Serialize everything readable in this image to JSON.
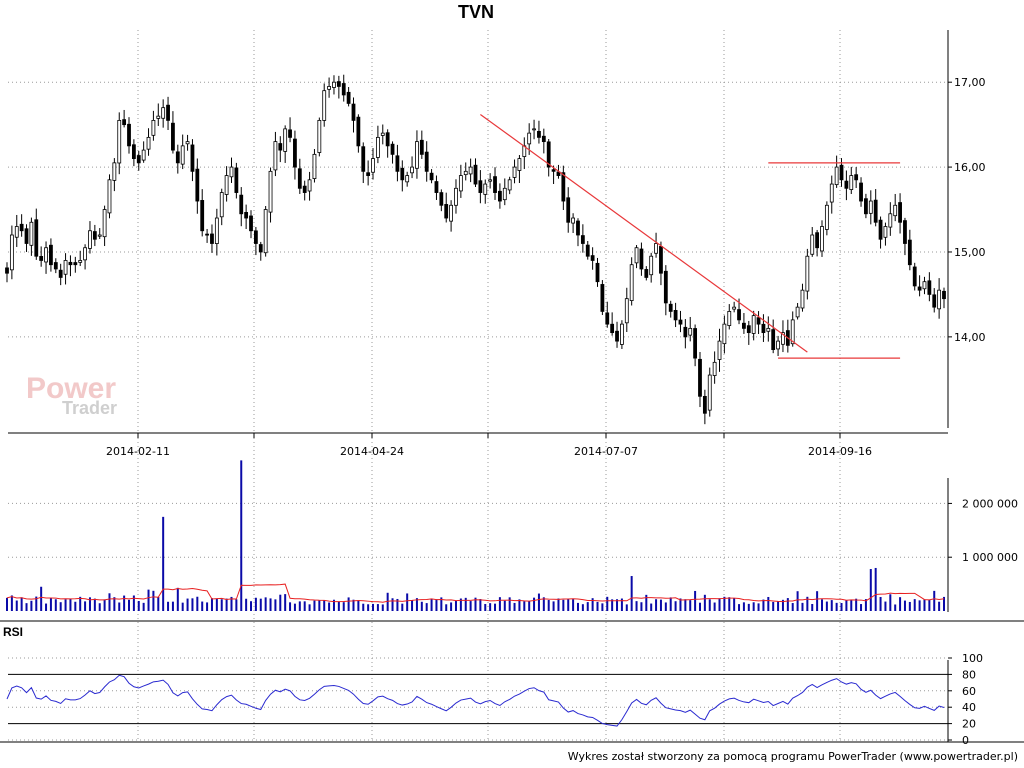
{
  "title": "TVN",
  "footer": "Wykres został stworzony za pomocą programu PowerTrader (www.powertrader.pl)",
  "watermark": {
    "line1": "Power",
    "line2": "Trader"
  },
  "colors": {
    "price": "#000000",
    "trendline": "#e8383a",
    "volume": "#0a0aa8",
    "volume_ma": "#e82020",
    "rsi": "#2a2ad0",
    "grid": "#9a9a9a"
  },
  "chart_data": [
    {
      "type": "candlestick",
      "name": "price",
      "title": "TVN",
      "x_tick_labels": [
        "2014-02-11",
        "2014-04-24",
        "2014-07-07",
        "2014-09-16"
      ],
      "y_tick_labels": [
        "17,00",
        "16,00",
        "15,00",
        "14,00"
      ],
      "y_ticks": [
        17,
        16,
        15,
        14
      ],
      "ylim": [
        12.95,
        17.45
      ],
      "grid": "dotted",
      "closes": [
        14.75,
        15.2,
        15.3,
        15.25,
        15.1,
        15.35,
        14.95,
        14.9,
        15.05,
        14.85,
        14.8,
        14.7,
        14.9,
        14.85,
        14.85,
        14.9,
        15.05,
        15.25,
        15.15,
        15.2,
        15.5,
        15.85,
        16.05,
        16.55,
        16.5,
        16.25,
        16.1,
        16.05,
        16.2,
        16.35,
        16.55,
        16.6,
        16.7,
        16.55,
        16.2,
        16.05,
        16.25,
        16.3,
        15.95,
        15.6,
        15.25,
        15.2,
        15.1,
        15.4,
        15.7,
        15.9,
        16.0,
        15.7,
        15.45,
        15.4,
        15.25,
        15.1,
        15.0,
        15.5,
        15.95,
        16.3,
        16.2,
        16.45,
        16.35,
        16.0,
        15.75,
        15.7,
        15.85,
        16.15,
        16.55,
        16.9,
        16.95,
        17.0,
        16.95,
        16.85,
        16.75,
        16.55,
        16.25,
        15.95,
        15.9,
        16.1,
        16.35,
        16.4,
        16.25,
        16.15,
        15.95,
        15.85,
        15.9,
        16.0,
        16.3,
        16.15,
        15.95,
        15.85,
        15.7,
        15.55,
        15.4,
        15.55,
        15.75,
        15.9,
        15.95,
        16.0,
        15.8,
        15.7,
        15.8,
        15.85,
        15.7,
        15.6,
        15.75,
        15.85,
        16.0,
        16.1,
        16.25,
        16.4,
        16.45,
        16.35,
        16.3,
        16.0,
        15.95,
        15.9,
        15.6,
        15.35,
        15.4,
        15.2,
        15.1,
        14.95,
        14.9,
        14.65,
        14.3,
        14.15,
        14.05,
        13.95,
        14.15,
        14.45,
        14.85,
        15.05,
        14.8,
        14.7,
        14.95,
        15.1,
        14.75,
        14.4,
        14.3,
        14.2,
        14.15,
        14.0,
        14.1,
        13.75,
        13.3,
        13.1,
        13.55,
        13.7,
        13.95,
        14.15,
        14.3,
        14.35,
        14.2,
        14.1,
        14.05,
        14.25,
        14.15,
        14.05,
        14.1,
        13.85,
        13.95,
        14.05,
        13.9,
        14.2,
        14.35,
        14.55,
        14.95,
        15.2,
        15.05,
        15.3,
        15.55,
        15.8,
        16.0,
        15.85,
        15.75,
        15.9,
        15.85,
        15.6,
        15.45,
        15.6,
        15.35,
        15.15,
        15.3,
        15.45,
        15.55,
        15.35,
        15.1,
        14.85,
        14.6,
        14.55,
        14.65,
        14.5,
        14.35,
        14.55,
        14.45
      ]
    },
    {
      "type": "bar",
      "name": "volume",
      "y_tick_labels": [
        "2 000 000",
        "1 000 000"
      ],
      "y_ticks": [
        2000000,
        1000000
      ],
      "ylim": [
        0,
        2900000
      ],
      "spikes": [
        {
          "index": 32,
          "value": 1750000
        },
        {
          "index": 48,
          "value": 2800000
        },
        {
          "index": 128,
          "value": 650000
        },
        {
          "index": 177,
          "value": 780000
        },
        {
          "index": 178,
          "value": 800000
        }
      ]
    },
    {
      "type": "line",
      "name": "rsi",
      "title": "RSI",
      "y_tick_labels": [
        "100",
        "80",
        "60",
        "40",
        "20",
        "0"
      ],
      "y_ticks": [
        100,
        80,
        60,
        40,
        20,
        0
      ],
      "ylim": [
        0,
        100
      ],
      "reference_lines": [
        80,
        20
      ]
    }
  ]
}
